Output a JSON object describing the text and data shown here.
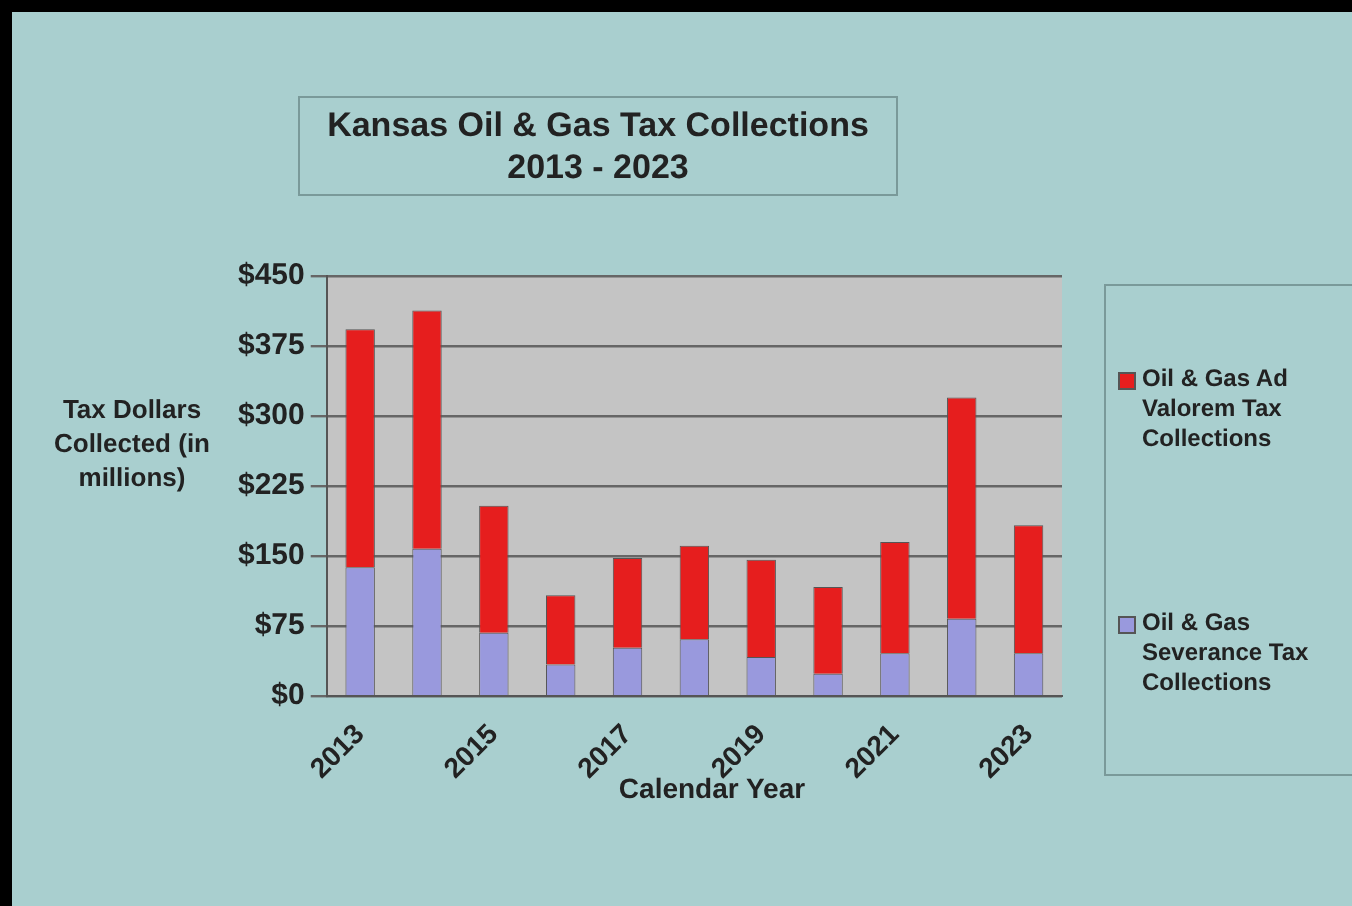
{
  "chart_data": {
    "type": "bar",
    "title": "Kansas Oil & Gas Tax Collections 2013 - 2023",
    "xlabel": "Calendar Year",
    "ylabel": "Tax Dollars Collected (in millions)",
    "categories": [
      "2013",
      null,
      "2015",
      null,
      "2017",
      null,
      "2019",
      null,
      "2021",
      null,
      "2023"
    ],
    "stacked": true,
    "series": [
      {
        "name": "Oil & Gas Severance Tax Collections",
        "color": "#9999dd",
        "values": [
          138,
          158,
          68,
          34,
          52,
          61,
          42,
          24,
          46,
          83,
          46
        ]
      },
      {
        "name": "Oil & Gas Ad Valorem Tax Collections",
        "color": "#e61e1e",
        "values": [
          255,
          255,
          136,
          74,
          96,
          100,
          104,
          93,
          119,
          237,
          137
        ]
      }
    ],
    "ylim": [
      0,
      450
    ],
    "yticks": [
      {
        "value": 0,
        "label": "$0"
      },
      {
        "value": 75,
        "label": "$75"
      },
      {
        "value": 150,
        "label": "$150"
      },
      {
        "value": 225,
        "label": "$225"
      },
      {
        "value": 300,
        "label": "$300"
      },
      {
        "value": 375,
        "label": "$375"
      },
      {
        "value": 450,
        "label": "$450"
      }
    ],
    "grid": "y",
    "legend": "right"
  }
}
